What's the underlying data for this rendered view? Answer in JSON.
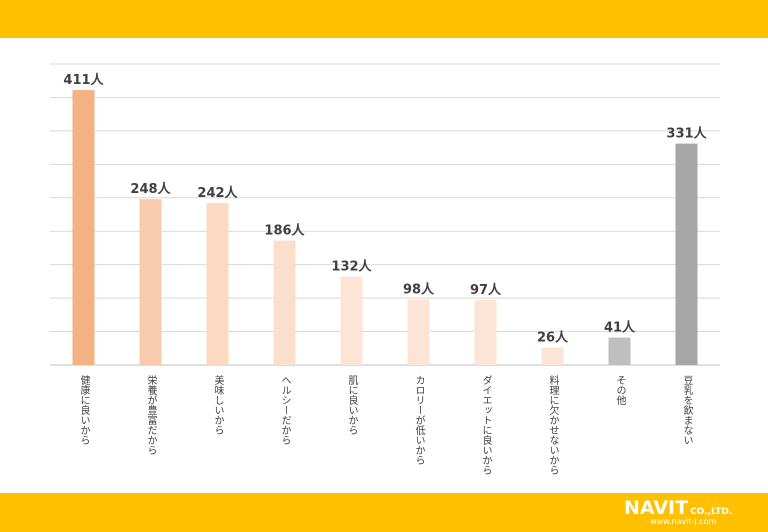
{
  "chart_data": {
    "type": "bar",
    "categories": [
      "健康に良いから",
      "栄養が豊富だから",
      "美味しいから",
      "ヘルシーだから",
      "肌に良いから",
      "カロリーが低いから",
      "ダイエットに良いから",
      "料理に欠かせないから",
      "その他",
      "豆乳を飲まない"
    ],
    "values": [
      411,
      248,
      242,
      186,
      132,
      98,
      97,
      26,
      41,
      331
    ],
    "value_labels": [
      "411人",
      "248人",
      "242人",
      "186人",
      "132人",
      "98人",
      "97人",
      "26人",
      "41人",
      "331人"
    ],
    "bar_colors": [
      "#F4B183",
      "#F8CBAD",
      "#FBD9C2",
      "#FBDFCC",
      "#FCE4D6",
      "#FCE4D6",
      "#FCE4D6",
      "#FCE4D6",
      "#BFBFBF",
      "#A6A6A6"
    ],
    "ylim": [
      0,
      450
    ],
    "grid": true,
    "title": "",
    "xlabel": "",
    "ylabel": ""
  },
  "colors": {
    "band": "#FFC000"
  },
  "brand": {
    "logo_text": "NAVIT",
    "logo_suffix": "CO.,LTD.",
    "url": "www.navit-j.com"
  }
}
